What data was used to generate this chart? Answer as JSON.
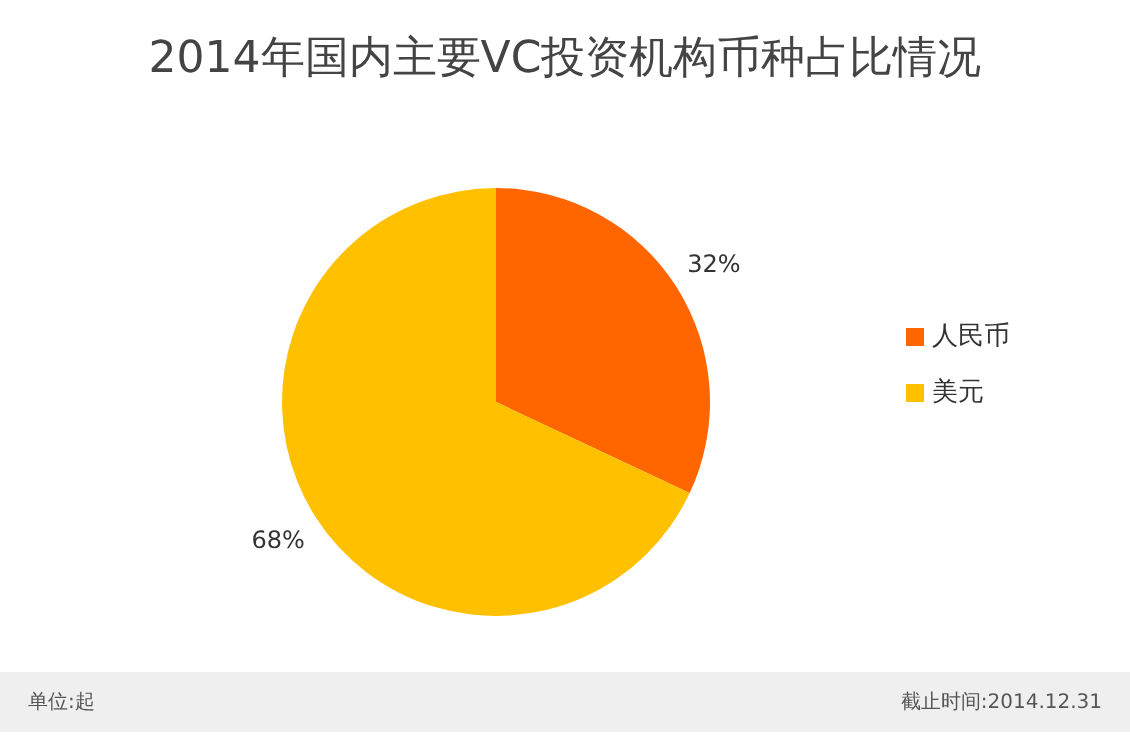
{
  "chart_data": {
    "type": "pie",
    "title": "2014年国内主要VC投资机构币种占比情况",
    "categories": [
      "人民币",
      "美元"
    ],
    "values": [
      32,
      68
    ],
    "colors": [
      "#ff6600",
      "#ffc000"
    ],
    "value_labels": [
      "32%",
      "68%"
    ],
    "legend": "right",
    "annotations": [
      "单位:起",
      "截止时间:2014.12.31"
    ]
  }
}
